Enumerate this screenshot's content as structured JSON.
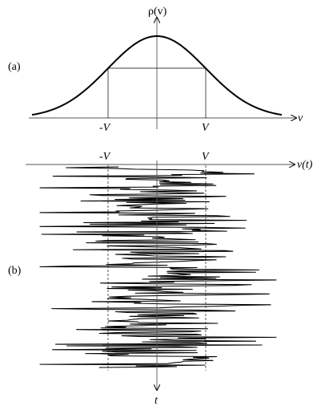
{
  "top_panel": {
    "panel_label": "(a)",
    "y_axis_label": "ρ(v)",
    "x_axis_label": "v",
    "tick_minus_v": "-V",
    "tick_plus_v": "V"
  },
  "bottom_panel": {
    "panel_label": "(b)",
    "x_axis_label": "v(t)",
    "y_axis_label": "t",
    "tick_minus_v": "-V",
    "tick_plus_v": "V",
    "signal_seed": 20231,
    "signal_samples": 260
  }
}
